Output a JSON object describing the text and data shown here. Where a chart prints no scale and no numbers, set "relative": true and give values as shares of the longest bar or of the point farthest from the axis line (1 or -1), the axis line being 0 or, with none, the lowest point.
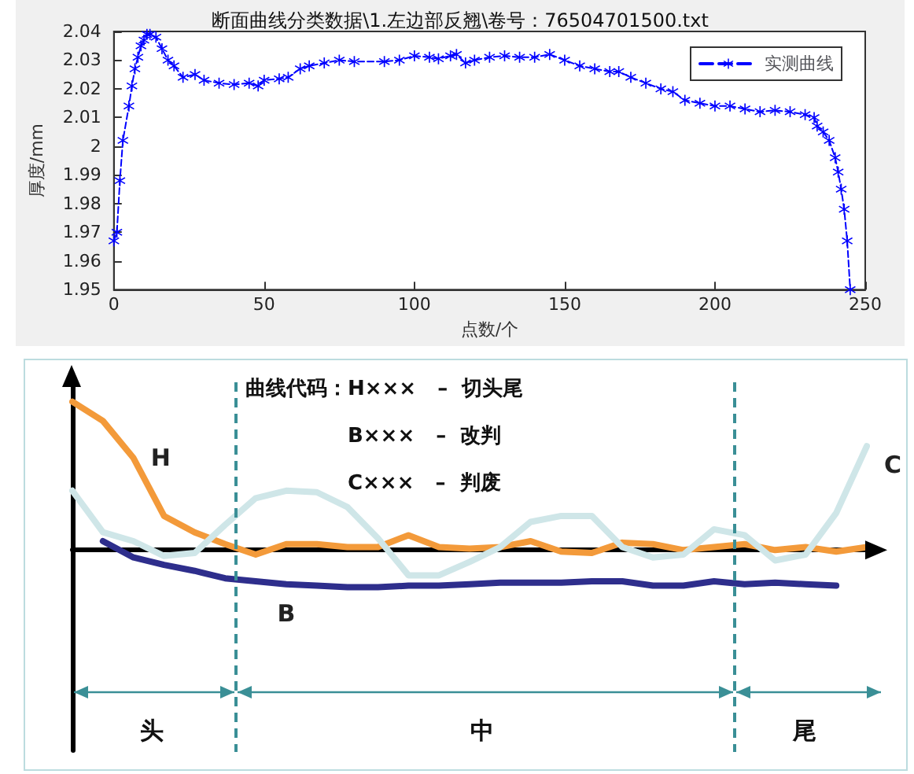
{
  "chart_data": [
    {
      "type": "line",
      "title": "断面曲线分类数据\\1.左边部反翘\\卷号：76504701500.txt",
      "xlabel": "点数/个",
      "ylabel": "厚度/mm",
      "legend": "top right",
      "marker": "star",
      "line_style": "dashed",
      "grid": false,
      "xlim": [
        0,
        250
      ],
      "xticks": [
        0,
        50,
        100,
        150,
        200,
        250
      ],
      "ylim": [
        1.95,
        2.04
      ],
      "yticks": [
        1.95,
        1.96,
        1.97,
        1.98,
        1.99,
        2,
        2.01,
        2.02,
        2.03,
        2.04
      ],
      "series": [
        {
          "name": "实测曲线",
          "color": "#0000ff",
          "x": [
            0,
            1,
            2,
            3,
            5,
            6,
            7,
            8,
            9,
            10,
            11,
            12,
            14,
            16,
            18,
            20,
            23,
            27,
            30,
            35,
            40,
            45,
            48,
            50,
            55,
            58,
            62,
            65,
            70,
            75,
            80,
            90,
            95,
            100,
            105,
            108,
            112,
            114,
            117,
            120,
            125,
            130,
            135,
            140,
            145,
            150,
            155,
            160,
            165,
            168,
            172,
            177,
            182,
            186,
            190,
            195,
            200,
            205,
            210,
            215,
            220,
            225,
            230,
            233,
            234,
            236,
            238,
            240,
            241,
            242,
            243,
            244,
            245
          ],
          "values": [
            1.967,
            1.97,
            1.988,
            2.002,
            2.014,
            2.021,
            2.027,
            2.031,
            2.035,
            2.037,
            2.039,
            2.039,
            2.038,
            2.034,
            2.03,
            2.028,
            2.024,
            2.025,
            2.023,
            2.022,
            2.0215,
            2.022,
            2.021,
            2.023,
            2.0235,
            2.024,
            2.027,
            2.028,
            2.029,
            2.03,
            2.0295,
            2.0295,
            2.03,
            2.0315,
            2.031,
            2.0305,
            2.0315,
            2.032,
            2.029,
            2.03,
            2.031,
            2.0315,
            2.031,
            2.031,
            2.032,
            2.03,
            2.028,
            2.027,
            2.026,
            2.026,
            2.024,
            2.022,
            2.02,
            2.019,
            2.016,
            2.015,
            2.014,
            2.014,
            2.013,
            2.012,
            2.0125,
            2.012,
            2.011,
            2.01,
            2.007,
            2.005,
            2.002,
            1.996,
            1.991,
            1.985,
            1.978,
            1.967,
            1.95
          ]
        }
      ]
    },
    {
      "type": "line",
      "relative": true,
      "categories": [
        null,
        null,
        null,
        null,
        null,
        null,
        null,
        null,
        null,
        null,
        null,
        null,
        null,
        null,
        null,
        null,
        null,
        null,
        null,
        null,
        null,
        null,
        null,
        null,
        null,
        null,
        null
      ],
      "annotations": [
        "曲线代码：H×××   –  切头尾",
        "B×××   –  改判",
        "C×××   –  判废",
        "头",
        "中",
        "尾"
      ],
      "series": [
        {
          "name": "H",
          "color": "#f39a3a",
          "values": [
            1,
            0.87,
            0.62,
            0.23,
            0.12,
            0.04,
            -0.03,
            0.04,
            0.04,
            0.02,
            0.02,
            0.1,
            0.02,
            0.01,
            0.02,
            0.06,
            -0.01,
            -0.02,
            0.05,
            0.04,
            0,
            0.02,
            0.04,
            0,
            0.02,
            -0.01,
            0.02
          ]
        },
        {
          "name": "B",
          "color": "#2e2e8c",
          "values": [
            null,
            0.06,
            -0.05,
            -0.1,
            -0.14,
            -0.19,
            -0.21,
            -0.23,
            -0.24,
            -0.25,
            -0.25,
            -0.24,
            -0.24,
            -0.23,
            -0.22,
            -0.22,
            -0.22,
            -0.21,
            -0.21,
            -0.24,
            -0.24,
            -0.21,
            -0.23,
            -0.22,
            -0.23,
            -0.24,
            null
          ]
        },
        {
          "name": "C",
          "color": "#cfe6e8",
          "values": [
            0.4,
            0.12,
            0.06,
            -0.04,
            -0.02,
            0.17,
            0.35,
            0.4,
            0.39,
            0.29,
            0.08,
            -0.17,
            -0.17,
            -0.08,
            0.02,
            0.19,
            0.23,
            0.23,
            0.02,
            -0.05,
            -0.03,
            0.14,
            0.1,
            -0.07,
            -0.03,
            0.25,
            0.7
          ]
        }
      ]
    }
  ]
}
